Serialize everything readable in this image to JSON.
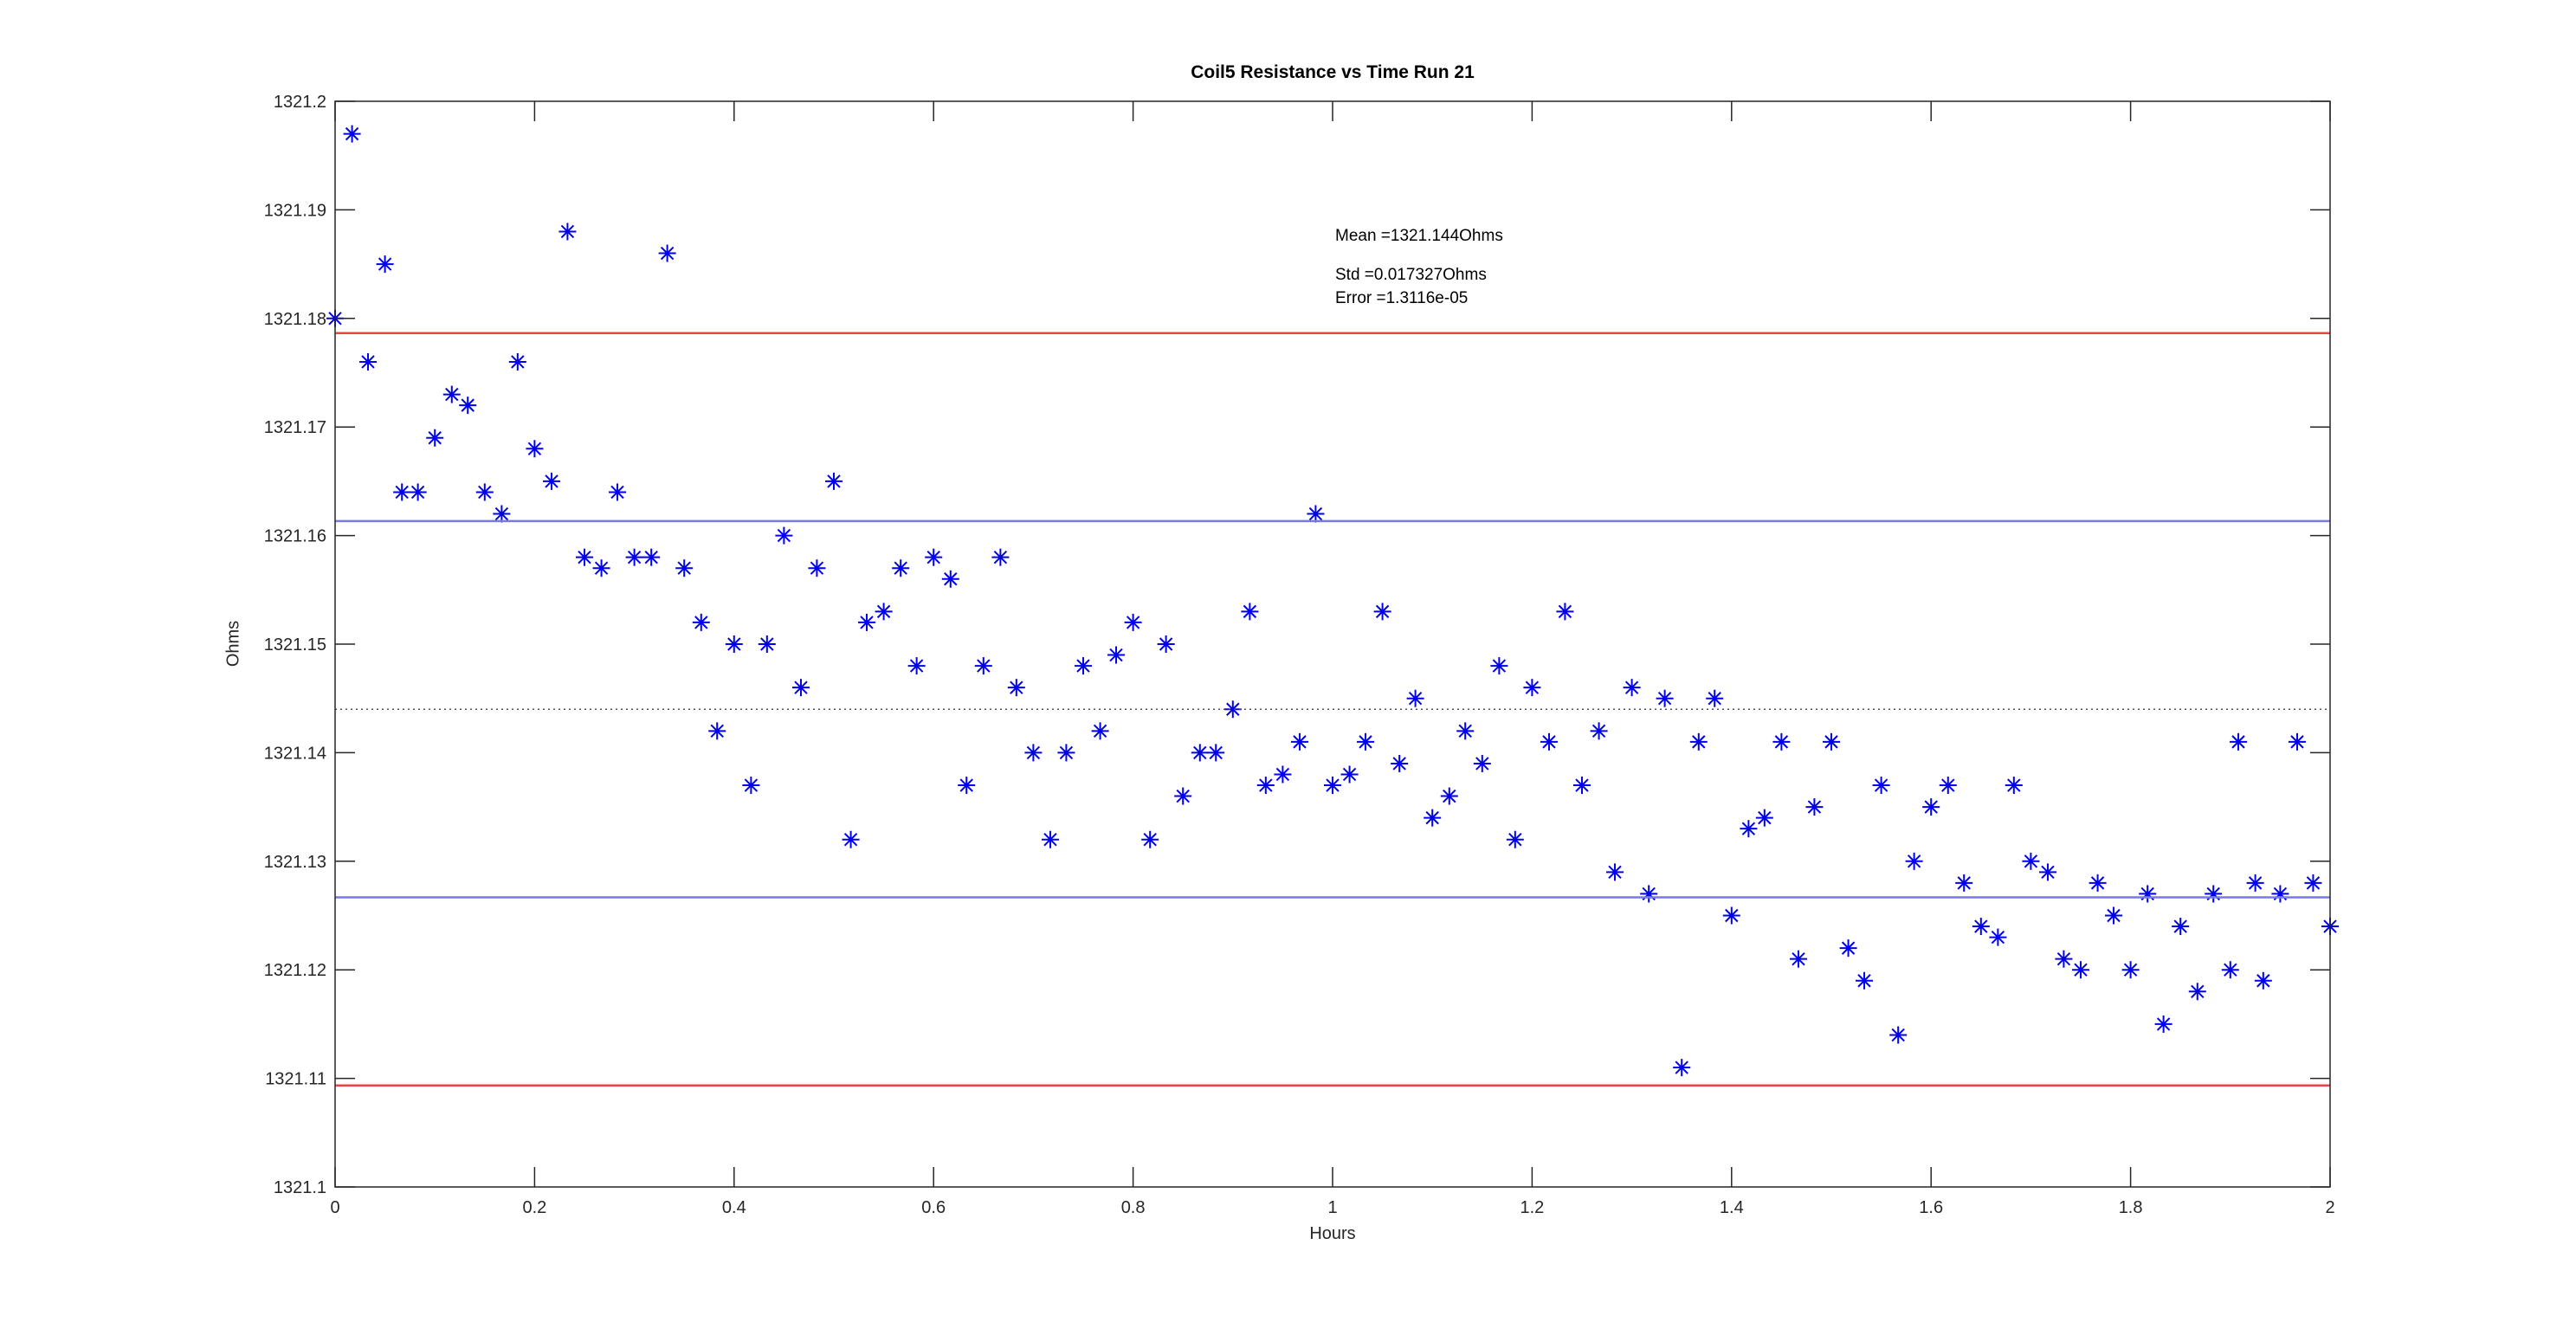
{
  "figure": {
    "title": "Coil5 Resistance vs Time Run 21",
    "xlabel": "Hours",
    "ylabel": "Ohms"
  },
  "annotations": {
    "mean": "Mean =1321.144Ohms",
    "std": "Std =0.017327Ohms",
    "error": "Error =1.3116e-05"
  },
  "stats": {
    "mean_ohms": 1321.144,
    "std_ohms": 0.017327,
    "error": 1.3116e-05
  },
  "chart_data": {
    "type": "scatter",
    "title": "Coil5 Resistance vs Time Run 21",
    "xlabel": "Hours",
    "ylabel": "Ohms",
    "xlim": [
      0,
      2
    ],
    "ylim": [
      1321.1,
      1321.2
    ],
    "grid": false,
    "xticks": [
      0,
      0.2,
      0.4,
      0.6,
      0.8,
      1,
      1.2,
      1.4,
      1.6,
      1.8,
      2
    ],
    "xtick_labels": [
      "0",
      "0.2",
      "0.4",
      "0.6",
      "0.8",
      "1",
      "1.2",
      "1.4",
      "1.6",
      "1.8",
      "2"
    ],
    "yticks": [
      1321.1,
      1321.11,
      1321.12,
      1321.13,
      1321.14,
      1321.15,
      1321.16,
      1321.17,
      1321.18,
      1321.19,
      1321.2
    ],
    "ytick_labels": [
      "1321.1",
      "1321.11",
      "1321.12",
      "1321.13",
      "1321.14",
      "1321.15",
      "1321.16",
      "1321.17",
      "1321.18",
      "1321.19",
      "1321.2"
    ],
    "axis_color": "#262626",
    "marker": "asterisk",
    "marker_color": "#0000EE",
    "ref_lines": [
      {
        "name": "mean-dotted",
        "value": 1321.144,
        "style": "dotted",
        "color": "#4D4D4D",
        "width": 1.5
      },
      {
        "name": "plus-1std",
        "value": 1321.16133,
        "style": "solid",
        "color": "#7878EB",
        "width": 2.5
      },
      {
        "name": "minus-1std",
        "value": 1321.12667,
        "style": "solid",
        "color": "#7878EB",
        "width": 2.5
      },
      {
        "name": "plus-2std",
        "value": 1321.17865,
        "style": "solid",
        "color": "#EF4343",
        "width": 2.5
      },
      {
        "name": "minus-2std",
        "value": 1321.10935,
        "style": "solid",
        "color": "#EF4343",
        "width": 2.5
      }
    ],
    "points": [
      [
        0.0,
        1321.18
      ],
      [
        0.017,
        1321.197
      ],
      [
        0.033,
        1321.176
      ],
      [
        0.05,
        1321.185
      ],
      [
        0.067,
        1321.164
      ],
      [
        0.083,
        1321.164
      ],
      [
        0.1,
        1321.169
      ],
      [
        0.117,
        1321.173
      ],
      [
        0.133,
        1321.172
      ],
      [
        0.15,
        1321.164
      ],
      [
        0.167,
        1321.162
      ],
      [
        0.183,
        1321.176
      ],
      [
        0.2,
        1321.168
      ],
      [
        0.217,
        1321.165
      ],
      [
        0.233,
        1321.188
      ],
      [
        0.25,
        1321.158
      ],
      [
        0.267,
        1321.157
      ],
      [
        0.283,
        1321.164
      ],
      [
        0.3,
        1321.158
      ],
      [
        0.317,
        1321.158
      ],
      [
        0.333,
        1321.186
      ],
      [
        0.35,
        1321.157
      ],
      [
        0.367,
        1321.152
      ],
      [
        0.383,
        1321.142
      ],
      [
        0.4,
        1321.15
      ],
      [
        0.417,
        1321.137
      ],
      [
        0.433,
        1321.15
      ],
      [
        0.45,
        1321.16
      ],
      [
        0.467,
        1321.146
      ],
      [
        0.483,
        1321.157
      ],
      [
        0.5,
        1321.165
      ],
      [
        0.517,
        1321.132
      ],
      [
        0.533,
        1321.152
      ],
      [
        0.55,
        1321.153
      ],
      [
        0.567,
        1321.157
      ],
      [
        0.583,
        1321.148
      ],
      [
        0.6,
        1321.158
      ],
      [
        0.617,
        1321.156
      ],
      [
        0.633,
        1321.137
      ],
      [
        0.65,
        1321.148
      ],
      [
        0.667,
        1321.158
      ],
      [
        0.683,
        1321.146
      ],
      [
        0.7,
        1321.14
      ],
      [
        0.717,
        1321.132
      ],
      [
        0.733,
        1321.14
      ],
      [
        0.75,
        1321.148
      ],
      [
        0.767,
        1321.142
      ],
      [
        0.783,
        1321.149
      ],
      [
        0.8,
        1321.152
      ],
      [
        0.817,
        1321.132
      ],
      [
        0.833,
        1321.15
      ],
      [
        0.85,
        1321.136
      ],
      [
        0.867,
        1321.14
      ],
      [
        0.883,
        1321.14
      ],
      [
        0.9,
        1321.144
      ],
      [
        0.917,
        1321.153
      ],
      [
        0.933,
        1321.137
      ],
      [
        0.95,
        1321.138
      ],
      [
        0.967,
        1321.141
      ],
      [
        0.983,
        1321.162
      ],
      [
        1.0,
        1321.137
      ],
      [
        1.017,
        1321.138
      ],
      [
        1.033,
        1321.141
      ],
      [
        1.05,
        1321.153
      ],
      [
        1.067,
        1321.139
      ],
      [
        1.083,
        1321.145
      ],
      [
        1.1,
        1321.134
      ],
      [
        1.117,
        1321.136
      ],
      [
        1.133,
        1321.142
      ],
      [
        1.15,
        1321.139
      ],
      [
        1.167,
        1321.148
      ],
      [
        1.183,
        1321.132
      ],
      [
        1.2,
        1321.146
      ],
      [
        1.217,
        1321.141
      ],
      [
        1.233,
        1321.153
      ],
      [
        1.25,
        1321.137
      ],
      [
        1.267,
        1321.142
      ],
      [
        1.283,
        1321.129
      ],
      [
        1.3,
        1321.146
      ],
      [
        1.317,
        1321.127
      ],
      [
        1.333,
        1321.145
      ],
      [
        1.35,
        1321.111
      ],
      [
        1.367,
        1321.141
      ],
      [
        1.383,
        1321.145
      ],
      [
        1.4,
        1321.125
      ],
      [
        1.417,
        1321.133
      ],
      [
        1.433,
        1321.134
      ],
      [
        1.45,
        1321.141
      ],
      [
        1.467,
        1321.121
      ],
      [
        1.483,
        1321.135
      ],
      [
        1.5,
        1321.141
      ],
      [
        1.517,
        1321.122
      ],
      [
        1.533,
        1321.119
      ],
      [
        1.55,
        1321.137
      ],
      [
        1.567,
        1321.114
      ],
      [
        1.583,
        1321.13
      ],
      [
        1.6,
        1321.135
      ],
      [
        1.617,
        1321.137
      ],
      [
        1.633,
        1321.128
      ],
      [
        1.65,
        1321.124
      ],
      [
        1.667,
        1321.123
      ],
      [
        1.683,
        1321.137
      ],
      [
        1.7,
        1321.13
      ],
      [
        1.717,
        1321.129
      ],
      [
        1.733,
        1321.121
      ],
      [
        1.75,
        1321.12
      ],
      [
        1.767,
        1321.128
      ],
      [
        1.783,
        1321.125
      ],
      [
        1.8,
        1321.12
      ],
      [
        1.817,
        1321.127
      ],
      [
        1.833,
        1321.115
      ],
      [
        1.85,
        1321.124
      ],
      [
        1.867,
        1321.118
      ],
      [
        1.883,
        1321.127
      ],
      [
        1.9,
        1321.12
      ],
      [
        1.908,
        1321.141
      ],
      [
        1.925,
        1321.128
      ],
      [
        1.933,
        1321.119
      ],
      [
        1.95,
        1321.127
      ],
      [
        1.967,
        1321.141
      ],
      [
        1.983,
        1321.128
      ],
      [
        2.0,
        1321.124
      ]
    ]
  }
}
